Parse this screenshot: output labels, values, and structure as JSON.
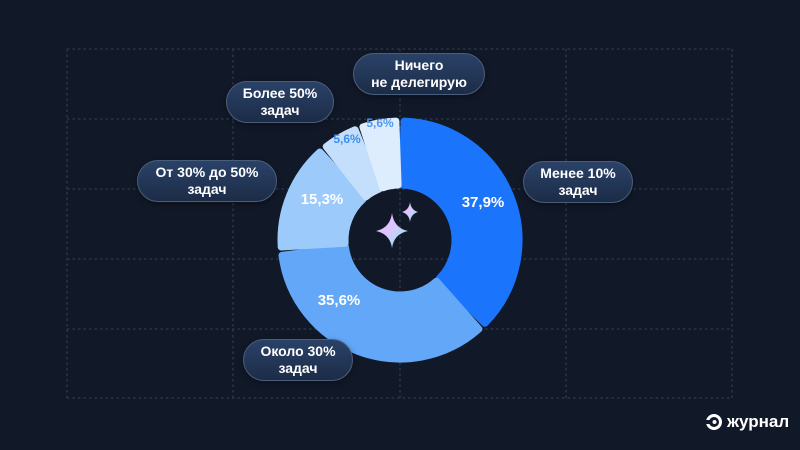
{
  "chart_data": {
    "type": "pie",
    "variant": "donut",
    "title": "",
    "categories": [
      "Менее 10% задач",
      "Около 30% задач",
      "От 30% до 50% задач",
      "Более 50% задач",
      "Ничего не делегирую"
    ],
    "values": [
      37.9,
      35.6,
      15.3,
      5.6,
      5.6
    ],
    "value_labels": [
      "37,9%",
      "35,6%",
      "15,3%",
      "5,6%",
      "5,6%"
    ],
    "colors": [
      "#1b74fc",
      "#62a7f8",
      "#9ccafb",
      "#c4dffc",
      "#deedfd"
    ],
    "label_colors": [
      "#ffffff",
      "#ffffff",
      "#ffffff",
      "#3d8ef2",
      "#4f98f4"
    ],
    "start_angle": "12 o'clock",
    "direction": "clockwise",
    "grid": true,
    "legend_position": "callout pills"
  },
  "labels": {
    "less10_l1": "Менее 10%",
    "less10_l2": "задач",
    "about30_l1": "Около 30%",
    "about30_l2": "задач",
    "from30_l1": "От 30% до 50%",
    "from30_l2": "задач",
    "more50_l1": "Более 50%",
    "more50_l2": "задач",
    "none_l1": "Ничего",
    "none_l2": "не делегирую"
  },
  "values": {
    "v1": "37,9%",
    "v2": "35,6%",
    "v3": "15,3%",
    "v4": "5,6%",
    "v5": "5,6%"
  },
  "brand": {
    "name": "журнал"
  },
  "theme": {
    "background": "#111827",
    "grid": "#2e3a4d",
    "pill_bg": "#233a5e"
  }
}
